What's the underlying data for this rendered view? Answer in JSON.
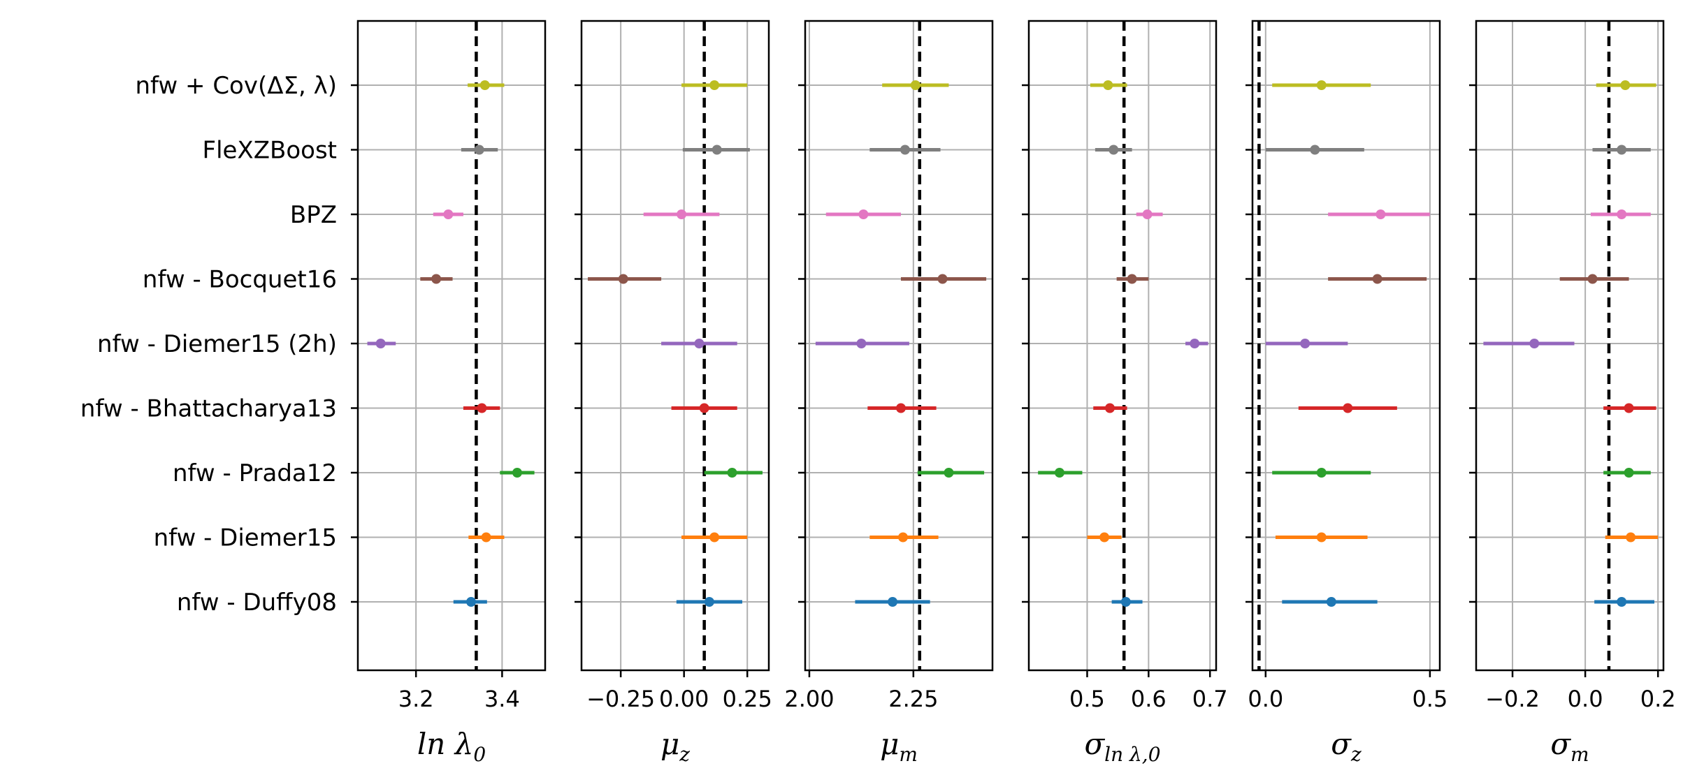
{
  "chart_data": {
    "type": "errorbar",
    "categories": [
      "nfw + Cov(ΔΣ, λ)",
      "FleXZBoost",
      "BPZ",
      "nfw - Bocquet16",
      "nfw - Diemer15 (2h)",
      "nfw - Bhattacharya13",
      "nfw - Prada12",
      "nfw - Diemer15",
      "nfw - Duffy08"
    ],
    "series_colors": [
      "#bcbd22",
      "#7f7f7f",
      "#e377c2",
      "#8c564b",
      "#9467bd",
      "#d62728",
      "#2ca02c",
      "#ff7f0e",
      "#1f77b4"
    ],
    "grid": true,
    "panels": [
      {
        "xlabel": "ln λ0",
        "xlabel_main": "ln λ",
        "xlabel_sub": "0",
        "xlim": [
          3.065,
          3.5
        ],
        "xticks": [
          3.2,
          3.4
        ],
        "xtick_labels": [
          "3.2",
          "3.4"
        ],
        "reference": 3.34,
        "points": [
          {
            "value": 3.36,
            "low": 3.32,
            "high": 3.405
          },
          {
            "value": 3.347,
            "low": 3.305,
            "high": 3.39
          },
          {
            "value": 3.275,
            "low": 3.24,
            "high": 3.31
          },
          {
            "value": 3.247,
            "low": 3.21,
            "high": 3.285
          },
          {
            "value": 3.118,
            "low": 3.087,
            "high": 3.153
          },
          {
            "value": 3.353,
            "low": 3.31,
            "high": 3.395
          },
          {
            "value": 3.435,
            "low": 3.395,
            "high": 3.475
          },
          {
            "value": 3.363,
            "low": 3.322,
            "high": 3.405
          },
          {
            "value": 3.328,
            "low": 3.287,
            "high": 3.365
          }
        ]
      },
      {
        "xlabel": "μz",
        "xlabel_main": "μ",
        "xlabel_sub": "z",
        "xlim": [
          -0.405,
          0.335
        ],
        "xticks": [
          -0.25,
          0.0,
          0.25
        ],
        "xtick_labels": [
          "−0.25",
          "0.00",
          "0.25"
        ],
        "reference": 0.08,
        "points": [
          {
            "value": 0.12,
            "low": -0.01,
            "high": 0.25
          },
          {
            "value": 0.13,
            "low": -0.005,
            "high": 0.26
          },
          {
            "value": -0.01,
            "low": -0.16,
            "high": 0.14
          },
          {
            "value": -0.24,
            "low": -0.38,
            "high": -0.09
          },
          {
            "value": 0.06,
            "low": -0.09,
            "high": 0.21
          },
          {
            "value": 0.08,
            "low": -0.05,
            "high": 0.21
          },
          {
            "value": 0.19,
            "low": 0.08,
            "high": 0.31
          },
          {
            "value": 0.12,
            "low": -0.01,
            "high": 0.25
          },
          {
            "value": 0.1,
            "low": -0.03,
            "high": 0.23
          }
        ]
      },
      {
        "xlabel": "μm",
        "xlabel_main": "μ",
        "xlabel_sub": "m",
        "xlim": [
          1.99,
          2.44
        ],
        "xticks": [
          2.0,
          2.25
        ],
        "xtick_labels": [
          "2.00",
          "2.25"
        ],
        "reference": 2.265,
        "points": [
          {
            "value": 2.255,
            "low": 2.175,
            "high": 2.335
          },
          {
            "value": 2.23,
            "low": 2.145,
            "high": 2.315
          },
          {
            "value": 2.13,
            "low": 2.04,
            "high": 2.22
          },
          {
            "value": 2.32,
            "low": 2.22,
            "high": 2.425
          },
          {
            "value": 2.125,
            "low": 2.015,
            "high": 2.24
          },
          {
            "value": 2.22,
            "low": 2.14,
            "high": 2.305
          },
          {
            "value": 2.335,
            "low": 2.26,
            "high": 2.42
          },
          {
            "value": 2.225,
            "low": 2.145,
            "high": 2.31
          },
          {
            "value": 2.2,
            "low": 2.11,
            "high": 2.29
          }
        ]
      },
      {
        "xlabel": "σln λ,0",
        "xlabel_main": "σ",
        "xlabel_sub": "ln λ,0",
        "xlim": [
          0.405,
          0.71
        ],
        "xticks": [
          0.5,
          0.6,
          0.7
        ],
        "xtick_labels": [
          "0.5",
          "0.6",
          "0.7"
        ],
        "reference": 0.56,
        "points": [
          {
            "value": 0.534,
            "low": 0.505,
            "high": 0.565
          },
          {
            "value": 0.543,
            "low": 0.513,
            "high": 0.573
          },
          {
            "value": 0.598,
            "low": 0.58,
            "high": 0.623
          },
          {
            "value": 0.573,
            "low": 0.548,
            "high": 0.6
          },
          {
            "value": 0.675,
            "low": 0.66,
            "high": 0.697
          },
          {
            "value": 0.537,
            "low": 0.51,
            "high": 0.565
          },
          {
            "value": 0.455,
            "low": 0.42,
            "high": 0.492
          },
          {
            "value": 0.528,
            "low": 0.5,
            "high": 0.556
          },
          {
            "value": 0.563,
            "low": 0.54,
            "high": 0.59
          }
        ]
      },
      {
        "xlabel": "σz",
        "xlabel_main": "σ",
        "xlabel_sub": "z",
        "xlim": [
          -0.04,
          0.53
        ],
        "xticks": [
          0.0,
          0.5
        ],
        "xtick_labels": [
          "0.0",
          "0.5"
        ],
        "reference": -0.02,
        "points": [
          {
            "value": 0.17,
            "low": 0.02,
            "high": 0.32
          },
          {
            "value": 0.15,
            "low": 0.0,
            "high": 0.3
          },
          {
            "value": 0.35,
            "low": 0.19,
            "high": 0.5
          },
          {
            "value": 0.34,
            "low": 0.19,
            "high": 0.49
          },
          {
            "value": 0.12,
            "low": 0.0,
            "high": 0.25
          },
          {
            "value": 0.25,
            "low": 0.1,
            "high": 0.4
          },
          {
            "value": 0.17,
            "low": 0.02,
            "high": 0.32
          },
          {
            "value": 0.17,
            "low": 0.03,
            "high": 0.31
          },
          {
            "value": 0.2,
            "low": 0.05,
            "high": 0.34
          }
        ]
      },
      {
        "xlabel": "σm",
        "xlabel_main": "σ",
        "xlabel_sub": "m",
        "xlim": [
          -0.3,
          0.215
        ],
        "xticks": [
          -0.2,
          0.0,
          0.2
        ],
        "xtick_labels": [
          "−0.2",
          "0.0",
          "0.2"
        ],
        "reference": 0.065,
        "points": [
          {
            "value": 0.11,
            "low": 0.03,
            "high": 0.195
          },
          {
            "value": 0.1,
            "low": 0.02,
            "high": 0.18
          },
          {
            "value": 0.1,
            "low": 0.015,
            "high": 0.18
          },
          {
            "value": 0.02,
            "low": -0.07,
            "high": 0.12
          },
          {
            "value": -0.14,
            "low": -0.28,
            "high": -0.03
          },
          {
            "value": 0.12,
            "low": 0.05,
            "high": 0.195
          },
          {
            "value": 0.12,
            "low": 0.05,
            "high": 0.18
          },
          {
            "value": 0.125,
            "low": 0.055,
            "high": 0.2
          },
          {
            "value": 0.1,
            "low": 0.025,
            "high": 0.19
          }
        ]
      }
    ]
  }
}
